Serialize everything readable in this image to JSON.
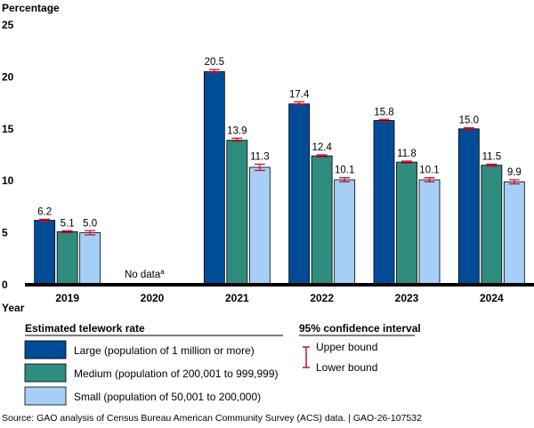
{
  "chart_data": {
    "type": "bar",
    "ylabel": "Percentage",
    "xlabel": "Year",
    "ylim": [
      0,
      25
    ],
    "yticks": [
      0,
      5,
      10,
      15,
      20,
      25
    ],
    "categories": [
      "2019",
      "2020",
      "2021",
      "2022",
      "2023",
      "2024"
    ],
    "series": [
      {
        "name": "Large (population of 1 million or more)",
        "color": "#004C97",
        "values": [
          6.2,
          null,
          20.5,
          17.4,
          15.8,
          15.0
        ],
        "labels": [
          "6.2",
          "",
          "20.5",
          "17.4",
          "15.8",
          "15.0"
        ],
        "ci_low": [
          6.1,
          null,
          20.4,
          17.3,
          15.7,
          14.9
        ],
        "ci_high": [
          6.3,
          null,
          20.7,
          17.6,
          15.9,
          15.1
        ]
      },
      {
        "name": "Medium (population of 200,001 to 999,999)",
        "color": "#2F8C7F",
        "values": [
          5.1,
          null,
          13.9,
          12.4,
          11.8,
          11.5
        ],
        "labels": [
          "5.1",
          "",
          "13.9",
          "12.4",
          "11.8",
          "11.5"
        ],
        "ci_low": [
          5.0,
          null,
          13.8,
          12.3,
          11.7,
          11.4
        ],
        "ci_high": [
          5.2,
          null,
          14.1,
          12.5,
          11.9,
          11.6
        ]
      },
      {
        "name": "Small (population of 50,001 to 200,000)",
        "color": "#A6CFF8",
        "values": [
          5.0,
          null,
          11.3,
          10.1,
          10.1,
          9.9
        ],
        "labels": [
          "5.0",
          "",
          "11.3",
          "10.1",
          "10.1",
          "9.9"
        ],
        "ci_low": [
          4.8,
          null,
          11.0,
          9.9,
          9.9,
          9.7
        ],
        "ci_high": [
          5.2,
          null,
          11.6,
          10.3,
          10.3,
          10.1
        ]
      }
    ],
    "no_data_note": {
      "category": "2020",
      "text": "No data",
      "superscript": "a"
    },
    "error_color": "#C8102E",
    "legend": {
      "title": "Estimated telework rate",
      "ci_title": "95% confidence interval",
      "upper_label": "Upper bound",
      "lower_label": "Lower bound"
    },
    "source": "Source: GAO analysis of Census Bureau American Community Survey (ACS) data.  |  GAO-26-107532"
  }
}
